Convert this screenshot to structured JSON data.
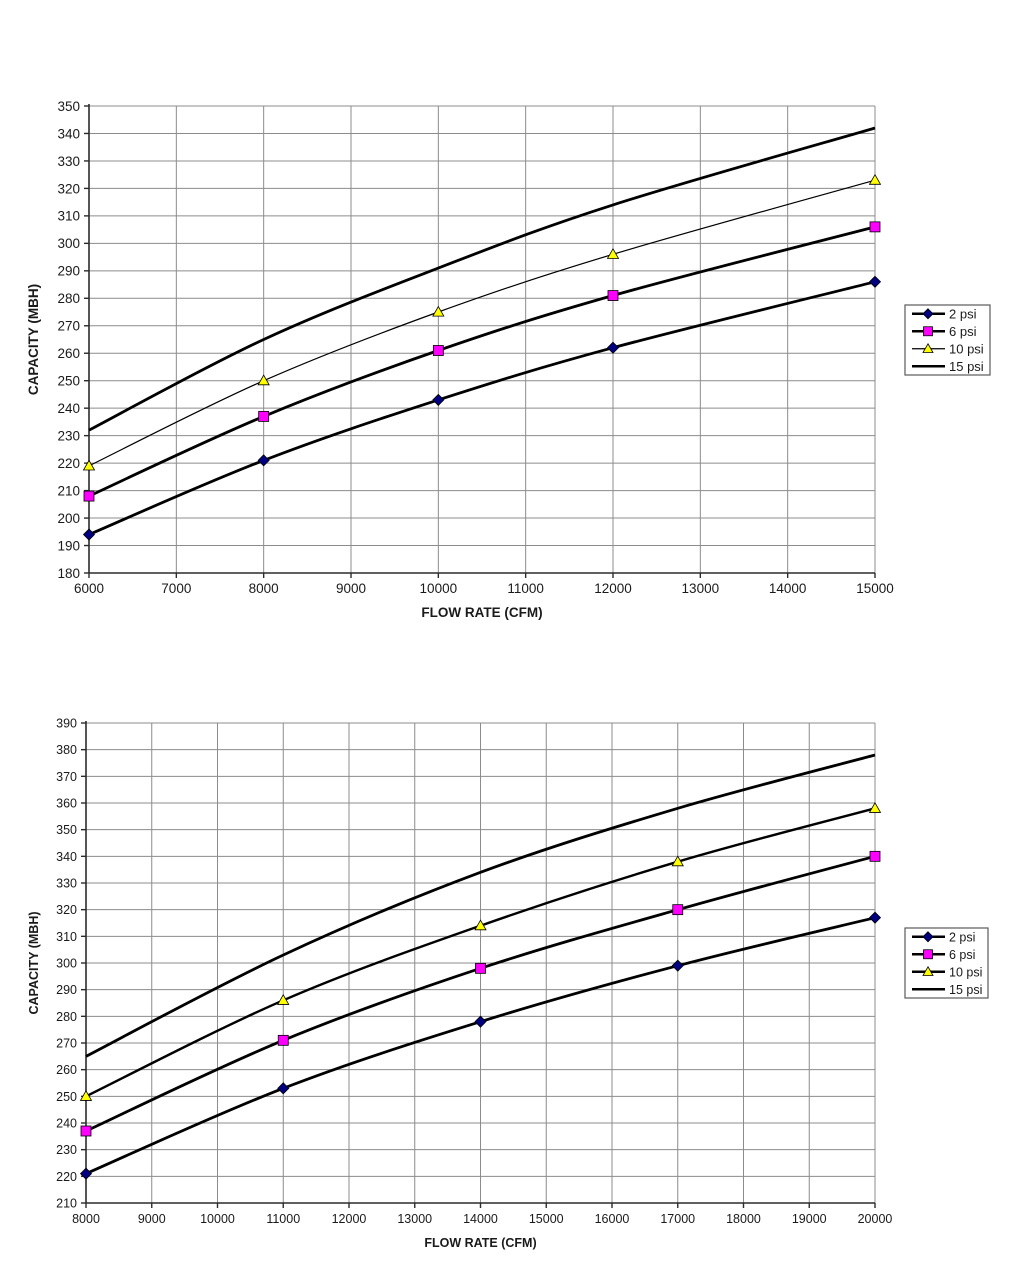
{
  "page": {
    "background": "#ffffff"
  },
  "colors": {
    "line": "#000000",
    "grid": "#8c8c8c",
    "axis": "#2b2b2b",
    "text": "#1a1a1a",
    "legend_border": "#595959",
    "marker_2psi": "#000080",
    "marker_6psi": "#ff00ff",
    "marker_10psi": "#ffff00"
  },
  "chart_data": [
    {
      "type": "line",
      "title": "",
      "xlabel": "FLOW RATE (CFM)",
      "ylabel": "CAPACITY (MBH)",
      "xlim": [
        6000,
        15000
      ],
      "xstep": 1000,
      "ylim": [
        180,
        350
      ],
      "ystep": 10,
      "grid": true,
      "legend_position": "right",
      "x": [
        6000,
        8000,
        10000,
        12000,
        15000
      ],
      "series": [
        {
          "name": "2 psi",
          "marker": "diamond",
          "marker_color": "#000080",
          "line_color": "#000000",
          "line_width": 2.8,
          "values": [
            194,
            221,
            243,
            262,
            286
          ]
        },
        {
          "name": "6 psi",
          "marker": "square",
          "marker_color": "#ff00ff",
          "line_color": "#000000",
          "line_width": 2.8,
          "values": [
            208,
            237,
            261,
            281,
            306
          ]
        },
        {
          "name": "10 psi",
          "marker": "triangle",
          "marker_color": "#ffff00",
          "line_color": "#000000",
          "line_width": 1.2,
          "values": [
            219,
            250,
            275,
            296,
            323
          ]
        },
        {
          "name": "15 psi",
          "marker": "none",
          "marker_color": "#000000",
          "line_color": "#000000",
          "line_width": 2.8,
          "values": [
            232,
            265,
            291,
            314,
            342
          ]
        }
      ]
    },
    {
      "type": "line",
      "title": "",
      "xlabel": "FLOW RATE (CFM)",
      "ylabel": "CAPACITY (MBH)",
      "xlim": [
        8000,
        20000
      ],
      "xstep": 1000,
      "ylim": [
        210,
        390
      ],
      "ystep": 10,
      "grid": true,
      "legend_position": "right",
      "x": [
        8000,
        11000,
        14000,
        17000,
        20000
      ],
      "series": [
        {
          "name": "2 psi",
          "marker": "diamond",
          "marker_color": "#000080",
          "line_color": "#000000",
          "line_width": 2.8,
          "values": [
            221,
            253,
            278,
            299,
            317
          ]
        },
        {
          "name": "6 psi",
          "marker": "square",
          "marker_color": "#ff00ff",
          "line_color": "#000000",
          "line_width": 2.8,
          "values": [
            237,
            271,
            298,
            320,
            340
          ]
        },
        {
          "name": "10 psi",
          "marker": "triangle",
          "marker_color": "#ffff00",
          "line_color": "#000000",
          "line_width": 2.4,
          "values": [
            250,
            286,
            314,
            338,
            358
          ]
        },
        {
          "name": "15 psi",
          "marker": "none",
          "marker_color": "#000000",
          "line_color": "#000000",
          "line_width": 2.8,
          "values": [
            265,
            303,
            334,
            358,
            378
          ]
        }
      ]
    }
  ]
}
